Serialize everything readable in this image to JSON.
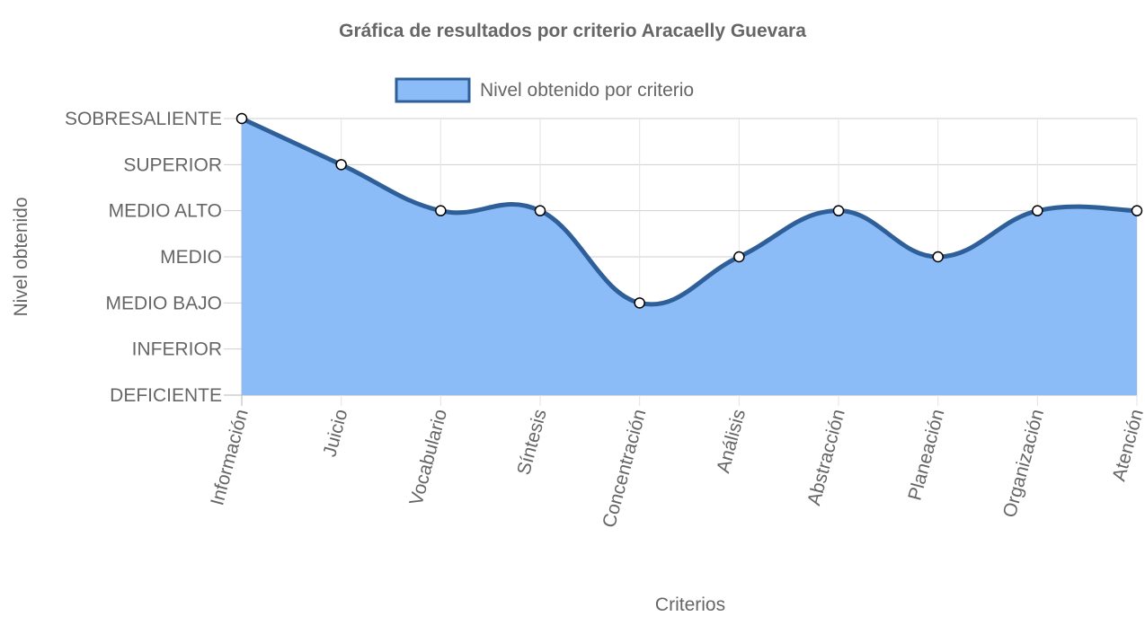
{
  "chart_data": {
    "type": "area",
    "title": "Gráfica de resultados por criterio Aracaelly Guevara",
    "xlabel": "Criterios",
    "ylabel": "Nivel obtenido",
    "categories": [
      "Información",
      "Juicio",
      "Vocabulario",
      "Síntesis",
      "Concentración",
      "Análisis",
      "Abstracción",
      "Planeación",
      "Organización",
      "Atención"
    ],
    "y_levels": [
      "DEFICIENTE",
      "INFERIOR",
      "MEDIO BAJO",
      "MEDIO",
      "MEDIO ALTO",
      "SUPERIOR",
      "SOBRESALIENTE"
    ],
    "ylim": [
      0,
      6
    ],
    "grid": true,
    "legend_position": "top",
    "series": [
      {
        "name": "Nivel obtenido por criterio",
        "values": [
          6,
          5,
          4,
          4,
          2,
          3,
          4,
          3,
          4,
          4
        ],
        "fill_color": "#8bbcf7",
        "line_color": "#2f5f98"
      }
    ]
  }
}
